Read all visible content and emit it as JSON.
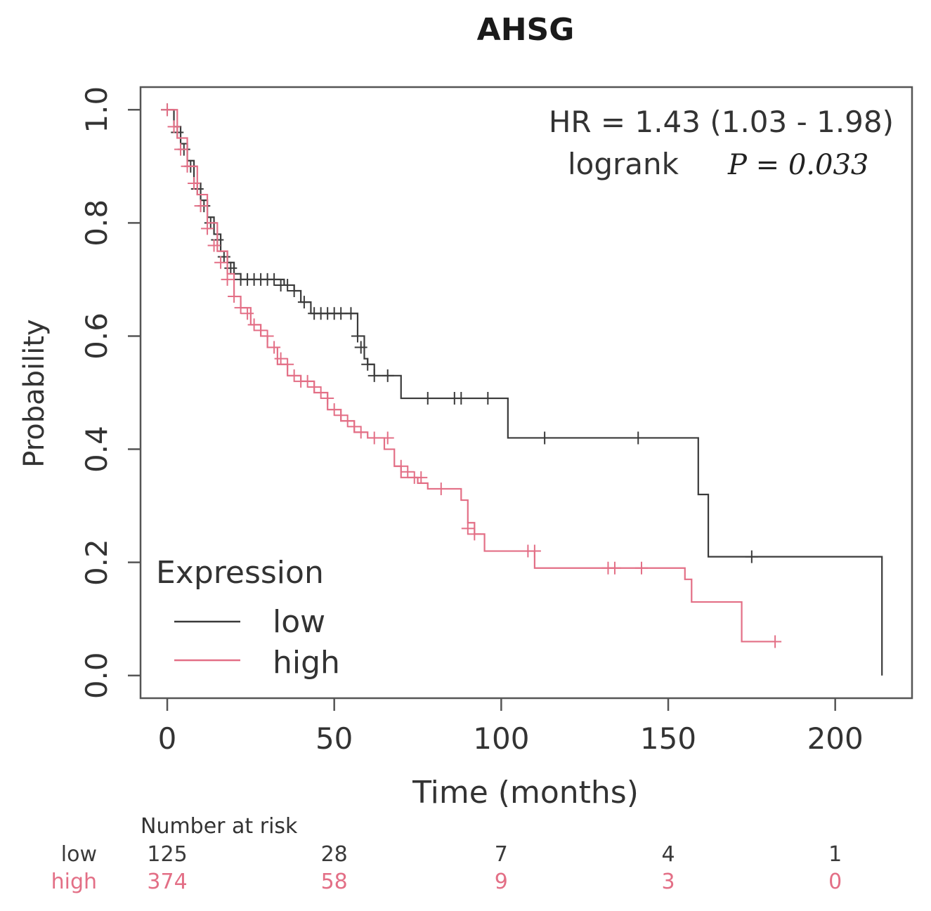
{
  "chart_data": {
    "type": "line",
    "title": "AHSG",
    "xlabel": "Time (months)",
    "ylabel": "Probability",
    "xlim": [
      -8,
      223
    ],
    "ylim": [
      -0.04,
      1.04
    ],
    "xticks": [
      "0",
      "50",
      "100",
      "150",
      "200"
    ],
    "xtick_values": [
      0,
      50,
      100,
      150,
      200
    ],
    "yticks": [
      "0.0",
      "0.2",
      "0.4",
      "0.6",
      "0.8",
      "1.0"
    ],
    "ytick_values": [
      0,
      0.2,
      0.4,
      0.6,
      0.8,
      1.0
    ],
    "annotation": {
      "hr_text": "HR = 1.43 (1.03 - 1.98)",
      "logrank_label": "logrank",
      "p_text": "P = 0.033"
    },
    "legend": {
      "title": "Expression",
      "position": "bottom-left"
    },
    "series": [
      {
        "name": "low",
        "color": "#3a3a3a",
        "x": [
          0,
          2,
          4,
          6,
          8,
          10,
          12,
          14,
          16,
          18,
          20,
          22,
          25,
          30,
          35,
          38,
          40,
          43,
          45,
          50,
          55,
          57,
          59,
          60,
          62,
          66,
          70,
          80,
          90,
          100,
          102,
          110,
          120,
          140,
          150,
          159,
          162,
          170,
          180,
          200,
          214,
          214
        ],
        "y": [
          1.0,
          0.97,
          0.94,
          0.91,
          0.87,
          0.84,
          0.81,
          0.78,
          0.75,
          0.73,
          0.71,
          0.7,
          0.7,
          0.7,
          0.69,
          0.68,
          0.66,
          0.64,
          0.64,
          0.64,
          0.64,
          0.6,
          0.56,
          0.55,
          0.53,
          0.53,
          0.49,
          0.49,
          0.49,
          0.49,
          0.42,
          0.42,
          0.42,
          0.42,
          0.42,
          0.32,
          0.21,
          0.21,
          0.21,
          0.21,
          0.21,
          0.0
        ],
        "censor_x": [
          0,
          3,
          5,
          7,
          9,
          11,
          13,
          15,
          17,
          19,
          22,
          24,
          26,
          28,
          30,
          32,
          34,
          36,
          38,
          41,
          44,
          46,
          48,
          50,
          52,
          55,
          57,
          58,
          60,
          62,
          66,
          78,
          86,
          88,
          96,
          113,
          141,
          175
        ],
        "censor_y": [
          1.0,
          0.96,
          0.93,
          0.9,
          0.86,
          0.83,
          0.8,
          0.77,
          0.74,
          0.72,
          0.7,
          0.7,
          0.7,
          0.7,
          0.7,
          0.7,
          0.69,
          0.69,
          0.68,
          0.66,
          0.64,
          0.64,
          0.64,
          0.64,
          0.64,
          0.64,
          0.6,
          0.58,
          0.55,
          0.53,
          0.53,
          0.49,
          0.49,
          0.49,
          0.49,
          0.42,
          0.42,
          0.21
        ]
      },
      {
        "name": "high",
        "color": "#e36f86",
        "x": [
          0,
          3,
          6,
          9,
          12,
          15,
          18,
          20,
          22,
          25,
          28,
          30,
          33,
          36,
          40,
          44,
          48,
          52,
          56,
          60,
          65,
          68,
          70,
          75,
          78,
          85,
          88,
          90,
          92,
          95,
          100,
          105,
          110,
          120,
          130,
          150,
          155,
          157,
          170,
          172,
          182
        ],
        "y": [
          1.0,
          0.95,
          0.9,
          0.85,
          0.8,
          0.75,
          0.71,
          0.67,
          0.65,
          0.62,
          0.6,
          0.58,
          0.55,
          0.53,
          0.52,
          0.5,
          0.47,
          0.45,
          0.43,
          0.42,
          0.4,
          0.37,
          0.35,
          0.34,
          0.33,
          0.33,
          0.31,
          0.27,
          0.25,
          0.22,
          0.22,
          0.22,
          0.19,
          0.19,
          0.19,
          0.19,
          0.17,
          0.13,
          0.13,
          0.06,
          0.06
        ],
        "censor_x": [
          0,
          2,
          4,
          6,
          8,
          10,
          12,
          14,
          16,
          18,
          20,
          22,
          24,
          26,
          28,
          30,
          32,
          34,
          36,
          38,
          40,
          42,
          44,
          46,
          48,
          50,
          52,
          54,
          56,
          58,
          62,
          66,
          70,
          72,
          74,
          76,
          82,
          90,
          92,
          108,
          110,
          132,
          134,
          142,
          182
        ],
        "censor_y": [
          1.0,
          0.97,
          0.93,
          0.9,
          0.87,
          0.83,
          0.79,
          0.76,
          0.73,
          0.7,
          0.67,
          0.65,
          0.64,
          0.62,
          0.61,
          0.6,
          0.58,
          0.56,
          0.55,
          0.53,
          0.52,
          0.52,
          0.51,
          0.5,
          0.49,
          0.47,
          0.46,
          0.45,
          0.44,
          0.43,
          0.42,
          0.42,
          0.37,
          0.36,
          0.35,
          0.35,
          0.33,
          0.26,
          0.25,
          0.22,
          0.22,
          0.19,
          0.19,
          0.19,
          0.06
        ]
      }
    ],
    "risk_table": {
      "title": "Number at risk",
      "times": [
        0,
        50,
        100,
        150,
        200
      ],
      "rows": [
        {
          "label": "low",
          "color": "#3a3a3a",
          "values": [
            "125",
            "28",
            "7",
            "4",
            "1"
          ]
        },
        {
          "label": "high",
          "color": "#e36f86",
          "values": [
            "374",
            "58",
            "9",
            "3",
            "0"
          ]
        }
      ]
    }
  }
}
